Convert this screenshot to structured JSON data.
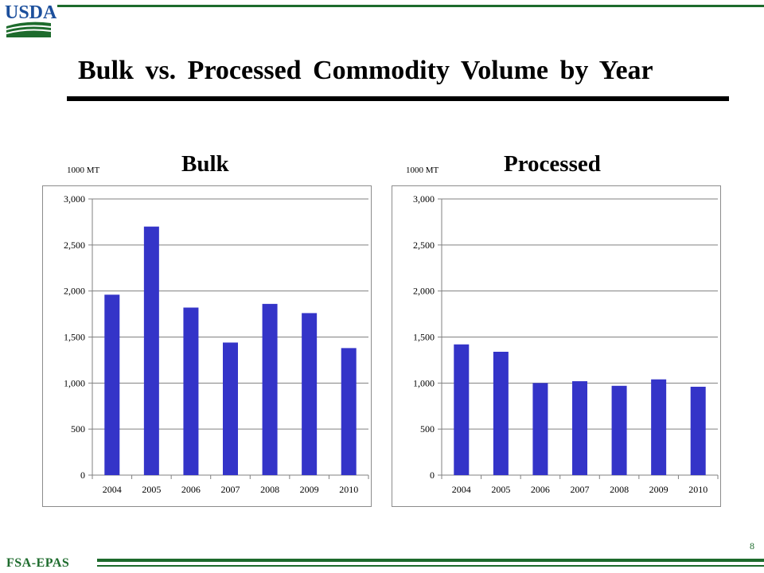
{
  "header": {
    "logo_text": "USDA",
    "title": "Bulk vs. Processed Commodity Volume by Year"
  },
  "footer": {
    "agency": "FSA-EPAS",
    "page_number": "8"
  },
  "colors": {
    "bar": "#3434c8",
    "brand_green": "#1d6b2c",
    "logo_blue": "#1c4f9c"
  },
  "chart_data": [
    {
      "type": "bar",
      "title": "Bulk",
      "unit_label": "1000 MT",
      "categories": [
        "2004",
        "2005",
        "2006",
        "2007",
        "2008",
        "2009",
        "2010"
      ],
      "values": [
        1960,
        2700,
        1820,
        1440,
        1860,
        1760,
        1380
      ],
      "ylim": [
        0,
        3000
      ],
      "yticks": [
        "0",
        "500",
        "1,000",
        "1,500",
        "2,000",
        "2,500",
        "3,000"
      ],
      "grid": true,
      "legend": "none"
    },
    {
      "type": "bar",
      "title": "Processed",
      "unit_label": "1000 MT",
      "categories": [
        "2004",
        "2005",
        "2006",
        "2007",
        "2008",
        "2009",
        "2010"
      ],
      "values": [
        1420,
        1340,
        1000,
        1020,
        970,
        1040,
        960
      ],
      "ylim": [
        0,
        3000
      ],
      "yticks": [
        "0",
        "500",
        "1,000",
        "1,500",
        "2,000",
        "2,500",
        "3,000"
      ],
      "grid": true,
      "legend": "none"
    }
  ]
}
